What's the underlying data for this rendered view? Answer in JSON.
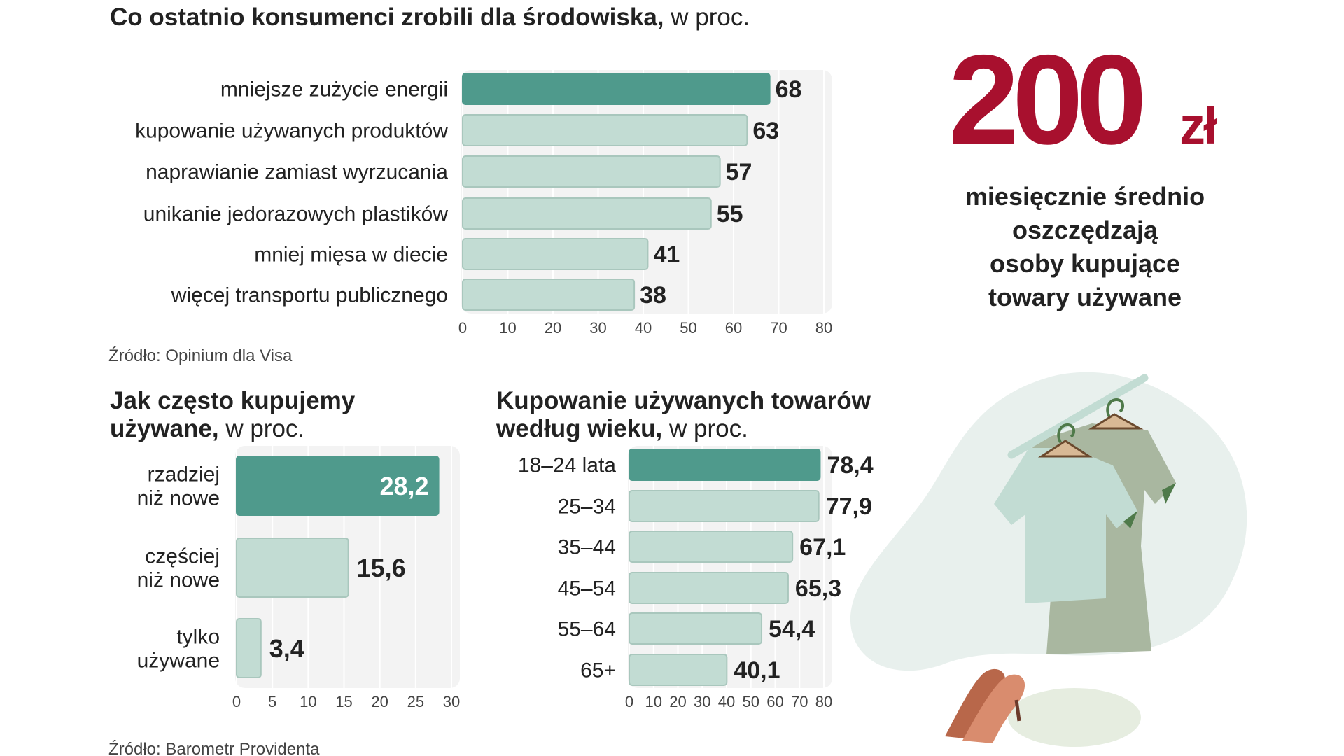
{
  "colors": {
    "accent": "#4f9a8c",
    "bar": "#c2dcd3",
    "bar_stroke": "#a9c7bd",
    "plot_bg": "#f3f3f3",
    "grid": "#ffffff",
    "highlight_number": "#a8102e",
    "text": "#222222",
    "muted_text": "#444444"
  },
  "chart_data": [
    {
      "id": "environment",
      "type": "bar",
      "orientation": "horizontal",
      "title_bold": "Co ostatnio konsumenci zrobili dla środowiska,",
      "title_light": " w proc.",
      "categories": [
        "mniejsze zużycie energii",
        "kupowanie używanych produktów",
        "naprawianie zamiast wyrzucania",
        "unikanie jedorazowych plastików",
        "mniej mięsa w diecie",
        "więcej transportu publicznego"
      ],
      "values": [
        68,
        63,
        57,
        55,
        41,
        38
      ],
      "value_labels": [
        "68",
        "63",
        "57",
        "55",
        "41",
        "38"
      ],
      "highlight_index": 0,
      "xlim": [
        0,
        80
      ],
      "xticks": [
        0,
        10,
        20,
        30,
        40,
        50,
        60,
        70,
        80
      ],
      "grid": true,
      "source": "Źródło: Opinium dla Visa"
    },
    {
      "id": "frequency",
      "type": "bar",
      "orientation": "horizontal",
      "title_bold_lines": [
        "Jak często kupujemy",
        "używane,"
      ],
      "title_light": " w proc.",
      "categories": [
        [
          "rzadziej",
          "niż nowe"
        ],
        [
          "częściej",
          "niż nowe"
        ],
        [
          "tylko",
          "używane"
        ]
      ],
      "values": [
        28.2,
        15.6,
        3.4
      ],
      "value_labels": [
        "28,2",
        "15,6",
        "3,4"
      ],
      "highlight_index": 0,
      "xlim": [
        0,
        30
      ],
      "xticks": [
        0,
        5,
        10,
        15,
        20,
        25,
        30
      ],
      "grid": true,
      "source": "Źródło: Barometr Providenta"
    },
    {
      "id": "age",
      "type": "bar",
      "orientation": "horizontal",
      "title_bold_lines": [
        "Kupowanie używanych towarów",
        "według wieku,"
      ],
      "title_light": " w proc.",
      "categories": [
        "18–24 lata",
        "25–34",
        "35–44",
        "45–54",
        "55–64",
        "65+"
      ],
      "values": [
        78.4,
        77.9,
        67.1,
        65.3,
        54.4,
        40.1
      ],
      "value_labels": [
        "78,4",
        "77,9",
        "67,1",
        "65,3",
        "54,4",
        "40,1"
      ],
      "highlight_index": 0,
      "xlim": [
        0,
        80
      ],
      "xticks": [
        0,
        10,
        20,
        30,
        40,
        50,
        60,
        70,
        80
      ],
      "grid": true
    }
  ],
  "highlight": {
    "number": "200",
    "unit": "zł",
    "caption": [
      "miesięcznie średnio",
      "oszczędzają",
      "osoby kupujące",
      "towary używane"
    ]
  }
}
